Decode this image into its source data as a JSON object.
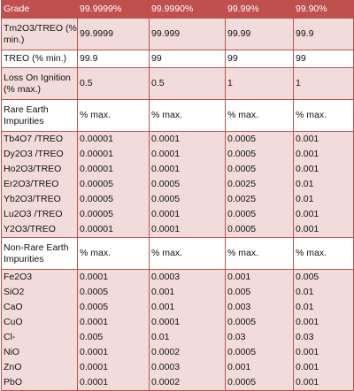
{
  "columns": [
    "Grade",
    "99.9999%",
    "99.9990%",
    "99.99%",
    "99.90%"
  ],
  "rows": [
    {
      "label": "Tm2O3/TREO (% min.)",
      "values": [
        "99.9999",
        "99.999",
        "99.99",
        "99.9"
      ]
    },
    {
      "label": "TREO (% min.)",
      "values": [
        "99.9",
        "99",
        "99",
        "99"
      ]
    },
    {
      "label": "Loss On Ignition (% max.)",
      "values": [
        "0.5",
        "0.5",
        "1",
        "1"
      ]
    },
    {
      "label": "Rare Earth Impurities",
      "values": [
        "% max.",
        "% max.",
        "% max.",
        "% max."
      ]
    }
  ],
  "rare_earth_group": [
    {
      "label": "Tb4O7 /TREO",
      "values": [
        "0.00001",
        "0.0001",
        "0.0005",
        "0.001"
      ]
    },
    {
      "label": "Dy2O3 /TREO",
      "values": [
        "0.00001",
        "0.0001",
        "0.0005",
        "0.001"
      ]
    },
    {
      "label": "Ho2O3/TREO",
      "values": [
        "0.00001",
        "0.0001",
        "0.0005",
        "0.001"
      ]
    },
    {
      "label": "Er2O3/TREO",
      "values": [
        "0.00005",
        "0.0005",
        "0.0025",
        "0.01"
      ]
    },
    {
      "label": "Yb2O3/TREO",
      "values": [
        "0.00005",
        "0.0005",
        "0.0025",
        "0.01"
      ]
    },
    {
      "label": "Lu2O3 /TREO",
      "values": [
        "0.00005",
        "0.0001",
        "0.0005",
        "0.001"
      ]
    },
    {
      "label": "Y2O3/TREO",
      "values": [
        "0.00001",
        "0.0001",
        "0.0005",
        "0.001"
      ]
    }
  ],
  "non_rare_header": {
    "label": "Non-Rare Earth Impurities",
    "values": [
      "% max.",
      "% max.",
      "% max.",
      "% max."
    ]
  },
  "non_rare_group": [
    {
      "label": "Fe2O3",
      "values": [
        "0.0001",
        "0.0003",
        "0.001",
        "0.005"
      ]
    },
    {
      "label": "SiO2",
      "values": [
        "0.0005",
        "0.001",
        "0.005",
        "0.01"
      ]
    },
    {
      "label": "CaO",
      "values": [
        "0.0005",
        "0.001",
        "0.003",
        "0.01"
      ]
    },
    {
      "label": "CuO",
      "values": [
        "0.0001",
        "0.0001",
        "0.0005",
        "0.001"
      ]
    },
    {
      "label": "Cl-",
      "values": [
        "0.005",
        "0.01",
        "0.03",
        "0.03"
      ]
    },
    {
      "label": "NiO",
      "values": [
        "0.0001",
        "0.0002",
        "0.0005",
        "0.001"
      ]
    },
    {
      "label": "ZnO",
      "values": [
        "0.0001",
        "0.0003",
        "0.001",
        "0.001"
      ]
    },
    {
      "label": "PbO",
      "values": [
        "0.0001",
        "0.0002",
        "0.0005",
        "0.001"
      ]
    }
  ]
}
